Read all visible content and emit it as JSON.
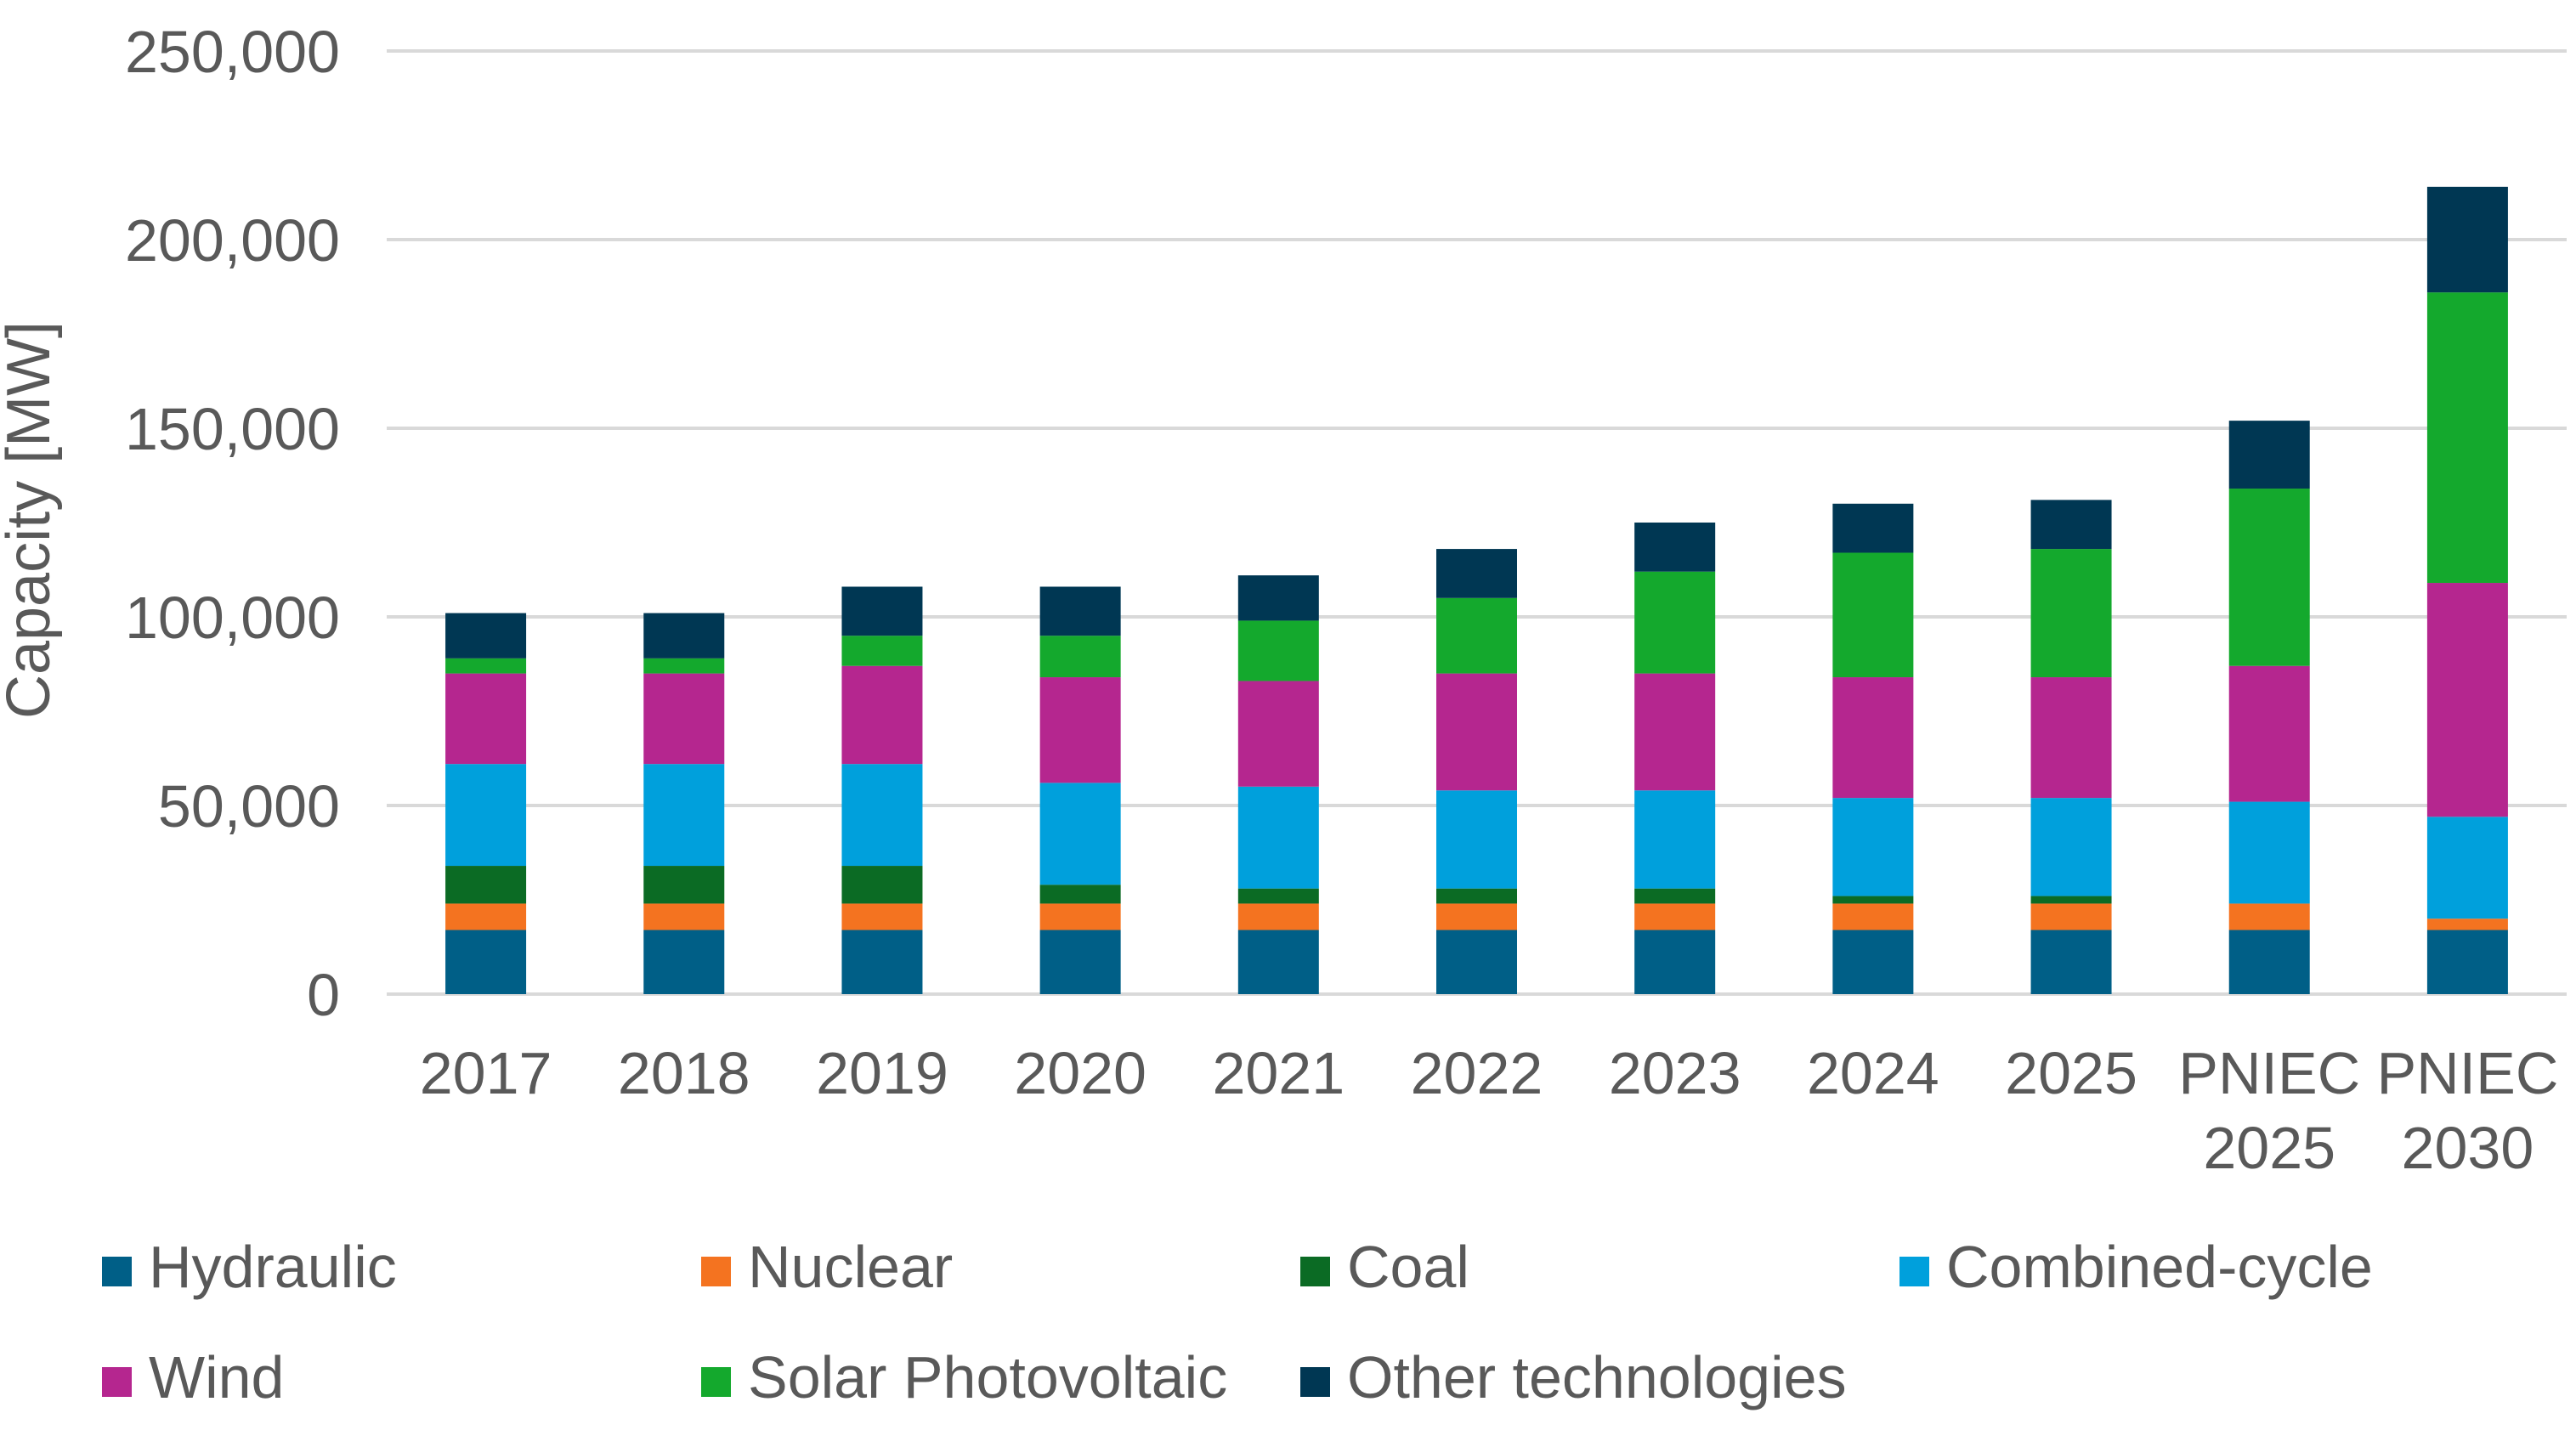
{
  "chart_data": {
    "type": "bar",
    "stacked": true,
    "title": "",
    "xlabel": "",
    "ylabel": "Capacity [MW]",
    "ylim": [
      0,
      250000
    ],
    "yticks": [
      0,
      50000,
      100000,
      150000,
      200000,
      250000
    ],
    "ytick_labels": [
      "0",
      "50,000",
      "100,000",
      "150,000",
      "200,000",
      "250,000"
    ],
    "grid": true,
    "legend_position": "bottom",
    "categories": [
      [
        "2017"
      ],
      [
        "2018"
      ],
      [
        "2019"
      ],
      [
        "2020"
      ],
      [
        "2021"
      ],
      [
        "2022"
      ],
      [
        "2023"
      ],
      [
        "2024"
      ],
      [
        "2025"
      ],
      [
        "PNIEC",
        "2025"
      ],
      [
        "PNIEC",
        "2030"
      ]
    ],
    "series": [
      {
        "name": "Hydraulic",
        "color": "#005f87",
        "values": [
          17000,
          17000,
          17000,
          17000,
          17000,
          17000,
          17000,
          17000,
          17000,
          17000,
          17000
        ]
      },
      {
        "name": "Nuclear",
        "color": "#f47320",
        "values": [
          7000,
          7000,
          7000,
          7000,
          7000,
          7000,
          7000,
          7000,
          7000,
          7000,
          3000
        ]
      },
      {
        "name": "Coal",
        "color": "#0b6b24",
        "values": [
          10000,
          10000,
          10000,
          5000,
          4000,
          4000,
          4000,
          2000,
          2000,
          0,
          0
        ]
      },
      {
        "name": "Combined-cycle",
        "color": "#00a0dc",
        "values": [
          27000,
          27000,
          27000,
          27000,
          27000,
          26000,
          26000,
          26000,
          26000,
          27000,
          27000
        ]
      },
      {
        "name": "Wind",
        "color": "#b5268f",
        "values": [
          24000,
          24000,
          26000,
          28000,
          28000,
          31000,
          31000,
          32000,
          32000,
          36000,
          62000
        ]
      },
      {
        "name": "Solar Photovoltaic",
        "color": "#14a92d",
        "values": [
          4000,
          4000,
          8000,
          11000,
          16000,
          20000,
          27000,
          33000,
          34000,
          47000,
          77000
        ]
      },
      {
        "name": "Other technologies",
        "color": "#003753",
        "values": [
          12000,
          12000,
          13000,
          13000,
          12000,
          13000,
          13000,
          13000,
          13000,
          18000,
          28000
        ]
      }
    ]
  }
}
